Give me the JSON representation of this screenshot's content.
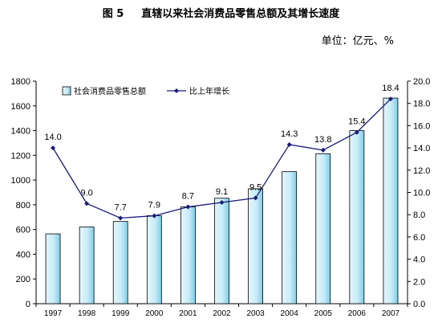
{
  "header": {
    "figure_number": "图 5",
    "title": "直辖以来社会消费品零售总额及其增长速度",
    "unit": "单位：亿元、%"
  },
  "chart_data": {
    "type": "bar",
    "categories": [
      "1997",
      "1998",
      "1999",
      "2000",
      "2001",
      "2002",
      "2003",
      "2004",
      "2005",
      "2006",
      "2007"
    ],
    "series": [
      {
        "name": "社会消费品零售总额",
        "type": "bar",
        "axis": "left",
        "color": "#c8ecf8",
        "values": [
          565,
          620,
          665,
          712,
          783,
          853,
          930,
          1068,
          1213,
          1400,
          1663
        ]
      },
      {
        "name": "比上年增长",
        "type": "line",
        "axis": "right",
        "color": "#1a1a7a",
        "values": [
          14.0,
          9.0,
          7.7,
          7.9,
          8.7,
          9.1,
          9.5,
          14.3,
          13.8,
          15.4,
          18.4
        ],
        "labels": [
          "14.0",
          "9.0",
          "7.7",
          "7.9",
          "8.7",
          "9.1",
          "9.5",
          "14.3",
          "13.8",
          "15.4",
          "18.4"
        ]
      }
    ],
    "y_left": {
      "ylim": [
        0,
        1800
      ],
      "ticks": [
        "0",
        "200",
        "400",
        "600",
        "800",
        "1000",
        "1200",
        "1400",
        "1600",
        "1800"
      ]
    },
    "y_right": {
      "ylim": [
        0,
        20
      ],
      "ticks": [
        "0.0",
        "2.0",
        "4.0",
        "6.0",
        "8.0",
        "10.0",
        "12.0",
        "14.0",
        "16.0",
        "18.0",
        "20.0"
      ]
    },
    "grid": false,
    "legend": "top-left"
  }
}
